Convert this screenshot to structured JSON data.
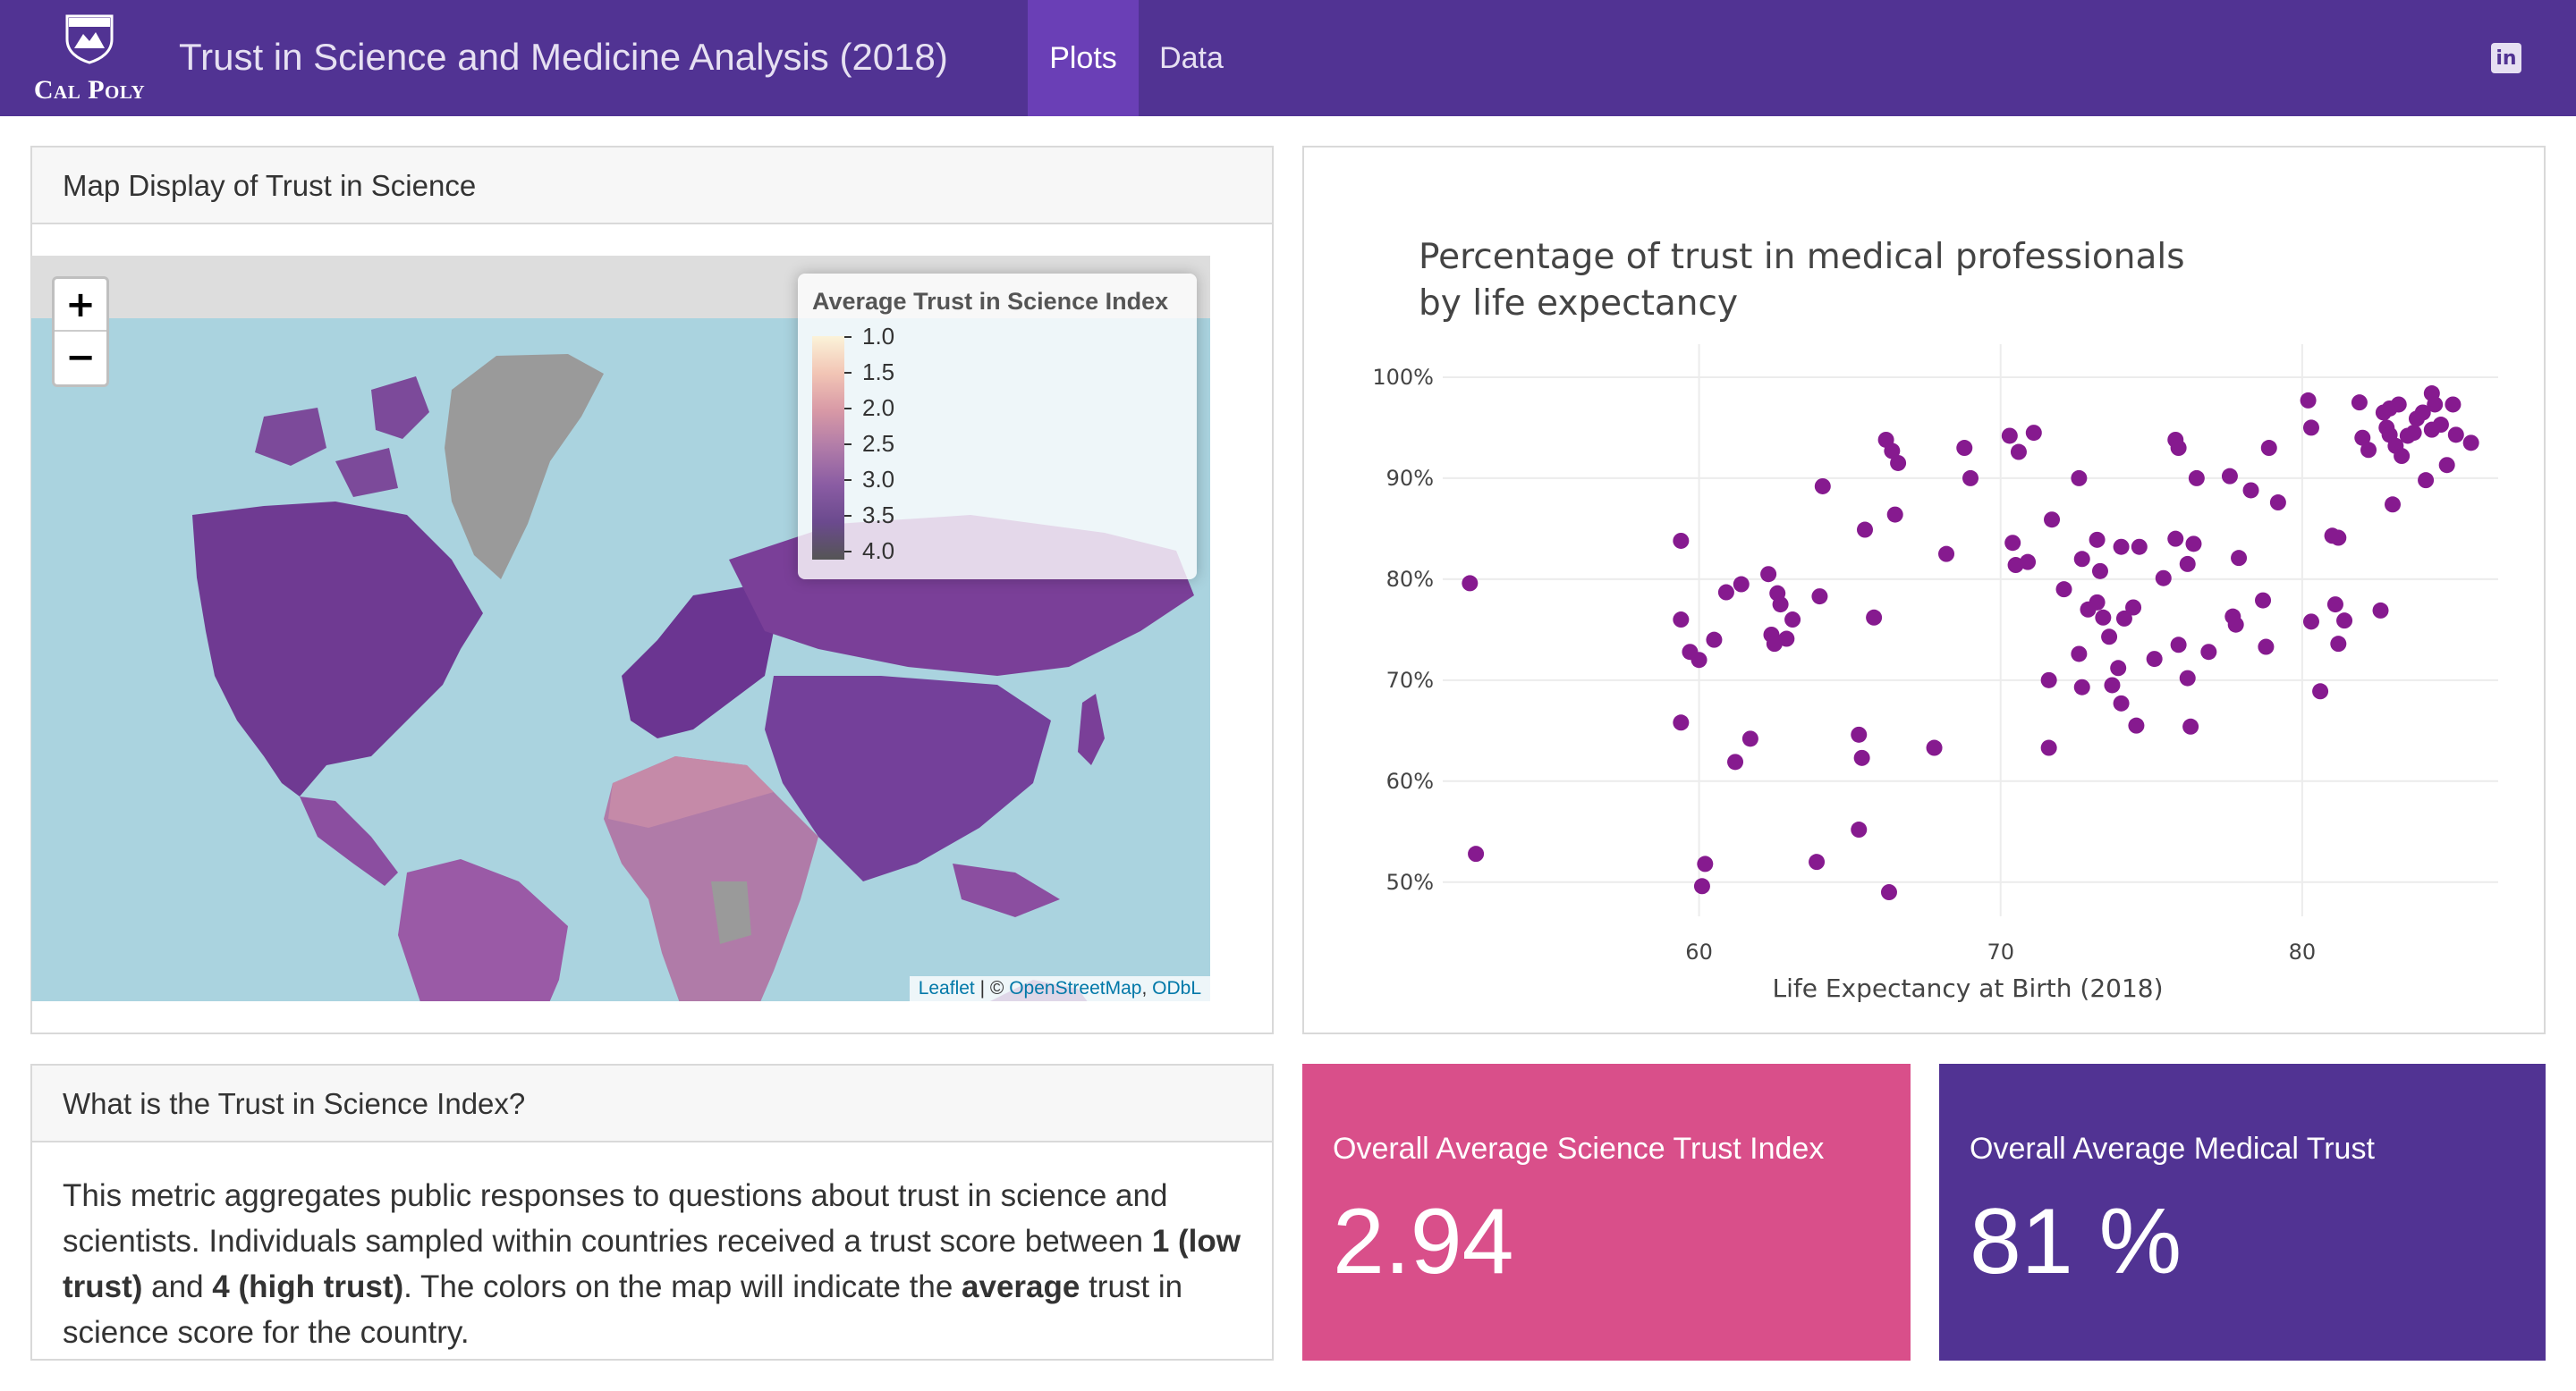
{
  "navbar": {
    "logo_text": "Cal Poly",
    "title": "Trust in Science and Medicine Analysis (2018)",
    "tabs": [
      {
        "label": "Plots",
        "active": true
      },
      {
        "label": "Data",
        "active": false
      }
    ],
    "linkedin_icon": "linkedin-icon",
    "colors": {
      "bg": "#513393",
      "active_tab": "#6a3fb6"
    }
  },
  "map_card": {
    "header": "Map Display of Trust in Science",
    "zoom_in": "+",
    "zoom_out": "−",
    "legend": {
      "title": "Average Trust in Science Index",
      "labels": [
        "1.0",
        "1.5",
        "2.0",
        "2.5",
        "3.0",
        "3.5",
        "4.0"
      ]
    },
    "attribution": {
      "leaflet": "Leaflet",
      "sep": " | © ",
      "osm": "OpenStreetMap",
      "comma": ", ",
      "odbl": "ODbL"
    }
  },
  "info_card": {
    "header": "What is the Trust in Science Index?",
    "text_1": "This metric aggregates public responses to questions about trust in science and scientists. Individuals sampled within countries received a trust score between ",
    "bold_1": "1 (low trust)",
    "text_2": " and ",
    "bold_2": "4 (high trust)",
    "text_3": ". The colors on the map will indicate the ",
    "bold_3": "average",
    "text_4": " trust in science score for the country."
  },
  "value_boxes": [
    {
      "title": "Overall Average Science Trust Index",
      "value": "2.94",
      "color": "#d94f8a"
    },
    {
      "title": "Overall Average Medical Trust",
      "value": "81 %",
      "color": "#513393"
    }
  ],
  "chart_data": {
    "type": "scatter",
    "title": "Percentage of trust in medical professionals by life expectancy",
    "title_lines": [
      "Percentage of trust in medical professionals",
      "by life expectancy"
    ],
    "xlabel": "Life Expectancy at Birth (2018)",
    "ylabel": "",
    "xlim": [
      51.5,
      86.5
    ],
    "ylim": [
      47.5,
      101.5
    ],
    "xticks": [
      60,
      70,
      80
    ],
    "yticks": [
      50,
      60,
      70,
      80,
      90,
      100
    ],
    "ytick_labels": [
      "50%",
      "60%",
      "70%",
      "80%",
      "90%",
      "100%"
    ],
    "marker_color": "#861a8f",
    "grid": true,
    "points": [
      [
        52.4,
        79.6
      ],
      [
        52.6,
        52.8
      ],
      [
        59.4,
        83.8
      ],
      [
        59.4,
        76.0
      ],
      [
        59.4,
        65.8
      ],
      [
        59.7,
        72.8
      ],
      [
        60.0,
        72.0
      ],
      [
        60.1,
        49.6
      ],
      [
        60.2,
        51.8
      ],
      [
        60.5,
        74.0
      ],
      [
        60.9,
        78.7
      ],
      [
        61.2,
        61.9
      ],
      [
        61.4,
        79.5
      ],
      [
        61.7,
        64.2
      ],
      [
        62.3,
        80.5
      ],
      [
        62.4,
        74.5
      ],
      [
        62.5,
        73.6
      ],
      [
        62.6,
        78.6
      ],
      [
        62.7,
        77.5
      ],
      [
        62.9,
        74.1
      ],
      [
        63.1,
        76.0
      ],
      [
        63.9,
        52.0
      ],
      [
        64.0,
        78.3
      ],
      [
        64.1,
        89.2
      ],
      [
        65.3,
        64.6
      ],
      [
        65.3,
        55.2
      ],
      [
        65.4,
        62.3
      ],
      [
        65.5,
        84.9
      ],
      [
        65.8,
        76.2
      ],
      [
        66.2,
        93.8
      ],
      [
        66.3,
        49.0
      ],
      [
        66.4,
        92.7
      ],
      [
        66.5,
        86.4
      ],
      [
        66.6,
        91.5
      ],
      [
        67.8,
        63.3
      ],
      [
        68.2,
        82.5
      ],
      [
        68.8,
        93.0
      ],
      [
        69.0,
        90.0
      ],
      [
        70.3,
        94.2
      ],
      [
        70.4,
        83.6
      ],
      [
        70.5,
        81.4
      ],
      [
        70.6,
        92.6
      ],
      [
        70.9,
        81.7
      ],
      [
        71.1,
        94.5
      ],
      [
        71.6,
        70.0
      ],
      [
        71.6,
        63.3
      ],
      [
        71.7,
        85.9
      ],
      [
        72.1,
        79.0
      ],
      [
        72.6,
        90.0
      ],
      [
        72.6,
        72.6
      ],
      [
        72.7,
        82.0
      ],
      [
        72.7,
        69.3
      ],
      [
        72.9,
        77.0
      ],
      [
        73.2,
        77.7
      ],
      [
        73.2,
        83.9
      ],
      [
        73.3,
        80.8
      ],
      [
        73.4,
        76.2
      ],
      [
        73.6,
        74.3
      ],
      [
        73.7,
        69.5
      ],
      [
        73.9,
        71.2
      ],
      [
        74.0,
        83.2
      ],
      [
        74.0,
        67.7
      ],
      [
        74.1,
        76.1
      ],
      [
        74.4,
        77.2
      ],
      [
        74.5,
        65.5
      ],
      [
        74.6,
        83.2
      ],
      [
        75.1,
        72.1
      ],
      [
        75.4,
        80.1
      ],
      [
        75.8,
        93.8
      ],
      [
        75.8,
        84.0
      ],
      [
        75.9,
        93.0
      ],
      [
        75.9,
        73.5
      ],
      [
        76.2,
        81.5
      ],
      [
        76.2,
        70.2
      ],
      [
        76.3,
        65.4
      ],
      [
        76.4,
        83.5
      ],
      [
        76.5,
        90.0
      ],
      [
        76.9,
        72.8
      ],
      [
        77.6,
        90.2
      ],
      [
        77.7,
        76.3
      ],
      [
        77.8,
        75.5
      ],
      [
        77.9,
        82.1
      ],
      [
        78.3,
        88.8
      ],
      [
        78.7,
        77.9
      ],
      [
        78.8,
        73.3
      ],
      [
        78.9,
        93.0
      ],
      [
        79.2,
        87.6
      ],
      [
        80.2,
        97.7
      ],
      [
        80.3,
        95.0
      ],
      [
        80.3,
        75.8
      ],
      [
        80.6,
        68.9
      ],
      [
        81.0,
        84.3
      ],
      [
        81.1,
        77.5
      ],
      [
        81.2,
        84.1
      ],
      [
        81.2,
        73.6
      ],
      [
        81.4,
        75.9
      ],
      [
        81.9,
        97.5
      ],
      [
        82.0,
        94.0
      ],
      [
        82.2,
        92.8
      ],
      [
        82.6,
        76.9
      ],
      [
        82.7,
        96.5
      ],
      [
        82.8,
        95.0
      ],
      [
        82.9,
        94.3
      ],
      [
        82.9,
        96.9
      ],
      [
        83.0,
        87.4
      ],
      [
        83.1,
        93.2
      ],
      [
        83.2,
        97.3
      ],
      [
        83.3,
        92.2
      ],
      [
        83.5,
        94.2
      ],
      [
        83.7,
        94.5
      ],
      [
        83.8,
        95.9
      ],
      [
        84.0,
        96.5
      ],
      [
        84.1,
        89.8
      ],
      [
        84.3,
        98.4
      ],
      [
        84.3,
        94.8
      ],
      [
        84.4,
        97.3
      ],
      [
        84.6,
        95.3
      ],
      [
        84.8,
        91.3
      ],
      [
        85.0,
        97.3
      ],
      [
        85.1,
        94.3
      ],
      [
        85.6,
        93.5
      ]
    ]
  }
}
